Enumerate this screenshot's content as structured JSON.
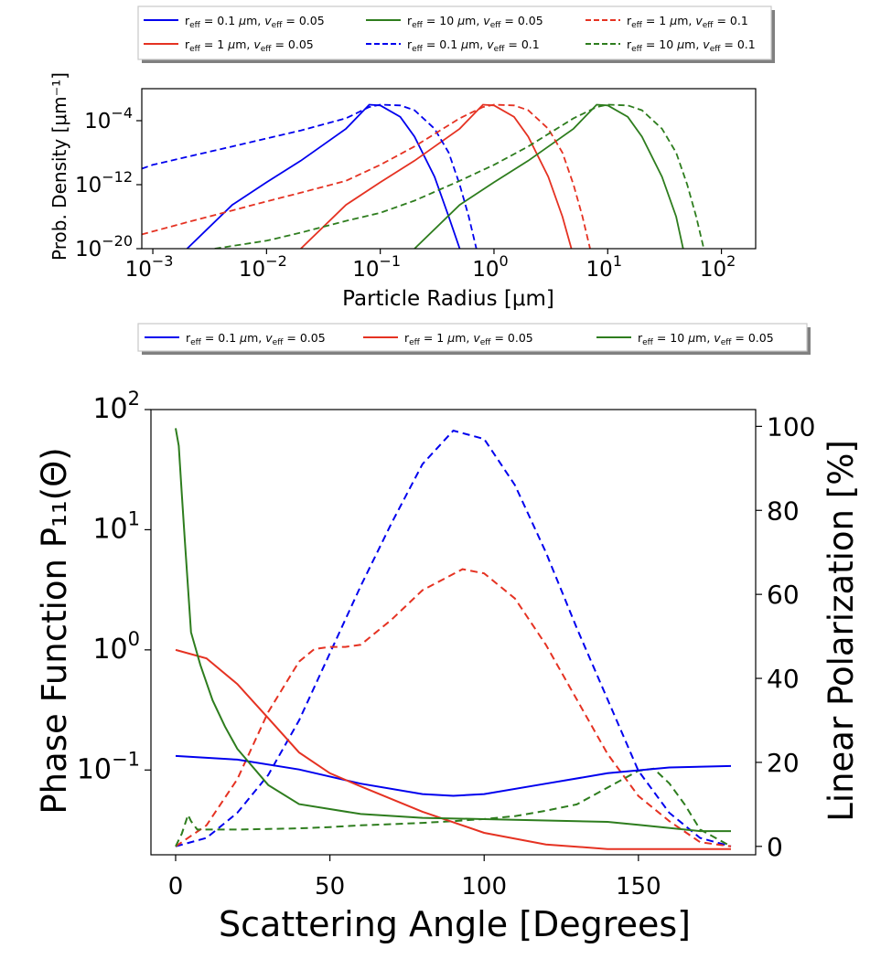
{
  "figure": {
    "size_note": "two-panel scattering figure",
    "top_legend": {
      "entries": [
        {
          "label": "r_eff = 0.1 μm, v_eff = 0.05",
          "r": "0.1",
          "v": "0.05",
          "color": "#0000ee",
          "dash": false
        },
        {
          "label": "r_eff = 10 μm, v_eff = 0.05",
          "r": "10",
          "v": "0.05",
          "color": "#2e7d1e",
          "dash": false
        },
        {
          "label": "r_eff = 1 μm, v_eff = 0.1",
          "r": "1",
          "v": "0.1",
          "color": "#e53222",
          "dash": true
        },
        {
          "label": "r_eff = 1 μm, v_eff = 0.05",
          "r": "1",
          "v": "0.05",
          "color": "#e53222",
          "dash": false
        },
        {
          "label": "r_eff = 0.1 μm, v_eff = 0.1",
          "r": "0.1",
          "v": "0.1",
          "color": "#0000ee",
          "dash": true
        },
        {
          "label": "r_eff = 10 μm, v_eff = 0.1",
          "r": "10",
          "v": "0.1",
          "color": "#2e7d1e",
          "dash": true
        }
      ]
    },
    "mid_legend": {
      "entries": [
        {
          "label": "r_eff = 0.1 μm, v_eff = 0.05",
          "r": "0.1",
          "v": "0.05",
          "color": "#0000ee",
          "dash": false
        },
        {
          "label": "r_eff = 1 μm, v_eff = 0.05",
          "r": "1",
          "v": "0.05",
          "color": "#e53222",
          "dash": false
        },
        {
          "label": "r_eff = 10 μm, v_eff = 0.05",
          "r": "10",
          "v": "0.05",
          "color": "#2e7d1e",
          "dash": false
        }
      ]
    }
  },
  "chart_data": [
    {
      "type": "line",
      "title": "",
      "xlabel": "Particle Radius [μm]",
      "ylabel": "Prob. Density [μm⁻¹]",
      "xscale": "log",
      "yscale": "log",
      "xlim": [
        0.0008,
        200
      ],
      "ylim": [
        1e-20,
        1
      ],
      "xticks": [
        {
          "value": 0.001,
          "base": "10",
          "exp": "−3"
        },
        {
          "value": 0.01,
          "base": "10",
          "exp": "−2"
        },
        {
          "value": 0.1,
          "base": "10",
          "exp": "−1"
        },
        {
          "value": 1,
          "base": "10",
          "exp": "0"
        },
        {
          "value": 10,
          "base": "10",
          "exp": "1"
        },
        {
          "value": 100,
          "base": "10",
          "exp": "2"
        }
      ],
      "yticks": [
        {
          "value": 1e-20,
          "base": "10",
          "exp": "−20"
        },
        {
          "value": 1e-12,
          "base": "10",
          "exp": "−12"
        },
        {
          "value": 0.0001,
          "base": "10",
          "exp": "−4"
        }
      ],
      "series": [
        {
          "name": "r_eff = 0.1 μm, v_eff = 0.05",
          "color": "#0000ee",
          "dash": false,
          "x": [
            0.002,
            0.005,
            0.01,
            0.02,
            0.05,
            0.08,
            0.1,
            0.15,
            0.2,
            0.3,
            0.4,
            0.5
          ],
          "y": [
            1e-20,
            3e-15,
            2e-12,
            1e-09,
            1e-05,
            0.01,
            0.008,
            0.0003,
            1e-06,
            1e-11,
            1e-16,
            1e-20
          ]
        },
        {
          "name": "r_eff = 1 μm, v_eff = 0.05",
          "color": "#e53222",
          "dash": false,
          "x": [
            0.02,
            0.05,
            0.1,
            0.2,
            0.5,
            0.8,
            1,
            1.5,
            2,
            3,
            4,
            4.8
          ],
          "y": [
            1e-20,
            3e-15,
            2e-12,
            1e-09,
            1e-05,
            0.01,
            0.008,
            0.0003,
            1e-06,
            1e-11,
            1e-16,
            1e-20
          ]
        },
        {
          "name": "r_eff = 10 μm, v_eff = 0.05",
          "color": "#2e7d1e",
          "dash": false,
          "x": [
            0.2,
            0.5,
            1,
            2,
            5,
            8,
            10,
            15,
            20,
            30,
            40,
            46
          ],
          "y": [
            1e-20,
            3e-15,
            2e-12,
            1e-09,
            1e-05,
            0.01,
            0.008,
            0.0003,
            1e-06,
            1e-11,
            1e-16,
            1e-20
          ]
        },
        {
          "name": "r_eff = 0.1 μm, v_eff = 0.1",
          "color": "#0000ee",
          "dash": true,
          "x": [
            0.0008,
            0.001,
            0.002,
            0.005,
            0.01,
            0.02,
            0.05,
            0.08,
            0.1,
            0.15,
            0.2,
            0.3,
            0.4,
            0.5,
            0.6,
            0.7
          ],
          "y": [
            1e-10,
            3e-10,
            3e-09,
            6e-08,
            6e-07,
            6e-06,
            0.0002,
            0.005,
            0.01,
            0.008,
            0.002,
            1e-05,
            1e-08,
            1e-12,
            1e-16,
            1e-20
          ]
        },
        {
          "name": "r_eff = 1 μm, v_eff = 0.1",
          "color": "#e53222",
          "dash": true,
          "x": [
            0.0008,
            0.002,
            0.005,
            0.01,
            0.02,
            0.05,
            0.1,
            0.2,
            0.5,
            0.8,
            1,
            1.5,
            2,
            3,
            4,
            5,
            6,
            7
          ],
          "y": [
            6e-19,
            2e-17,
            6e-16,
            8e-15,
            1e-13,
            3e-12,
            3e-10,
            6e-08,
            0.0002,
            0.005,
            0.01,
            0.008,
            0.002,
            1e-05,
            1e-08,
            1e-12,
            1e-16,
            1e-20
          ]
        },
        {
          "name": "r_eff = 10 μm, v_eff = 0.1",
          "color": "#2e7d1e",
          "dash": true,
          "x": [
            0.0035,
            0.01,
            0.02,
            0.05,
            0.1,
            0.2,
            0.5,
            1,
            2,
            5,
            8,
            10,
            15,
            20,
            30,
            40,
            50,
            60,
            70
          ],
          "y": [
            1e-20,
            1e-19,
            1e-18,
            3e-17,
            3e-16,
            1e-14,
            3e-12,
            3e-10,
            6e-08,
            0.0002,
            0.005,
            0.01,
            0.008,
            0.002,
            1e-05,
            1e-08,
            1e-12,
            1e-16,
            1e-20
          ]
        }
      ]
    },
    {
      "type": "line",
      "title": "",
      "xlabel": "Scattering Angle [Degrees]",
      "ylabel": "Phase Function P₁₁(Θ)",
      "ylabel_right": "Linear Polarization [%]",
      "xlim": [
        -8,
        188
      ],
      "xticks": [
        0,
        50,
        100,
        150
      ],
      "yscale_left": "log",
      "ylim_left": [
        0.0197,
        100
      ],
      "yticks_left": [
        {
          "value": 100,
          "base": "10",
          "exp": "2"
        },
        {
          "value": 10,
          "base": "10",
          "exp": "1"
        },
        {
          "value": 1,
          "base": "10",
          "exp": "0"
        },
        {
          "value": 0.1,
          "base": "10",
          "exp": "−1"
        }
      ],
      "ylim_right": [
        -2,
        104
      ],
      "yticks_right": [
        0,
        20,
        40,
        60,
        80,
        100
      ],
      "phase_series": [
        {
          "name": "r_eff = 0.1 μm, v_eff = 0.05",
          "color": "#0000ee",
          "x": [
            0,
            20,
            40,
            60,
            80,
            90,
            100,
            120,
            140,
            160,
            180
          ],
          "y": [
            0.131,
            0.122,
            0.101,
            0.077,
            0.063,
            0.061,
            0.063,
            0.077,
            0.094,
            0.105,
            0.108
          ]
        },
        {
          "name": "r_eff = 1 μm, v_eff = 0.05",
          "color": "#e53222",
          "x": [
            0,
            10,
            20,
            30,
            40,
            50,
            60,
            80,
            100,
            120,
            140,
            160,
            180
          ],
          "y": [
            1.0,
            0.85,
            0.52,
            0.27,
            0.14,
            0.094,
            0.073,
            0.045,
            0.03,
            0.024,
            0.022,
            0.022,
            0.022
          ]
        },
        {
          "name": "r_eff = 10 μm, v_eff = 0.05",
          "color": "#2e7d1e",
          "x": [
            0,
            1,
            2,
            3,
            5,
            8,
            12,
            16,
            20,
            30,
            40,
            60,
            80,
            100,
            120,
            140,
            150,
            170,
            180
          ],
          "y": [
            70,
            50,
            20,
            8,
            1.4,
            0.75,
            0.38,
            0.23,
            0.15,
            0.075,
            0.052,
            0.043,
            0.04,
            0.039,
            0.038,
            0.037,
            0.035,
            0.031,
            0.031
          ]
        }
      ],
      "polarization_series": [
        {
          "name": "r_eff = 0.1 μm, v_eff = 0.05",
          "color": "#0000ee",
          "x": [
            0,
            10,
            20,
            30,
            40,
            50,
            60,
            70,
            80,
            90,
            100,
            110,
            120,
            130,
            140,
            150,
            160,
            170,
            180
          ],
          "y": [
            0,
            2,
            8,
            17,
            30,
            46,
            62,
            77,
            91,
            99,
            97,
            86,
            70,
            52,
            35,
            18,
            8,
            2,
            0
          ]
        },
        {
          "name": "r_eff = 1 μm, v_eff = 0.05",
          "color": "#e53222",
          "x": [
            0,
            10,
            20,
            30,
            40,
            45,
            50,
            55,
            60,
            70,
            80,
            93,
            100,
            110,
            120,
            130,
            140,
            150,
            160,
            170,
            180
          ],
          "y": [
            0,
            5,
            16,
            32,
            44,
            47,
            47.5,
            47.5,
            48,
            54,
            61,
            66,
            65,
            59,
            48,
            35,
            22,
            12,
            6,
            1,
            0
          ]
        },
        {
          "name": "r_eff = 10 μm, v_eff = 0.05",
          "color": "#2e7d1e",
          "x": [
            0,
            2,
            4,
            5,
            7,
            10,
            20,
            40,
            50,
            60,
            70,
            80,
            90,
            100,
            110,
            120,
            130,
            140,
            150,
            155,
            160,
            165,
            170,
            180
          ],
          "y": [
            0,
            3,
            7.5,
            6,
            4,
            4,
            4,
            4.3,
            4.6,
            5,
            5.3,
            5.6,
            6,
            6.5,
            7.2,
            8.5,
            10,
            14,
            18,
            18.5,
            15,
            10,
            4,
            0
          ]
        }
      ]
    }
  ]
}
